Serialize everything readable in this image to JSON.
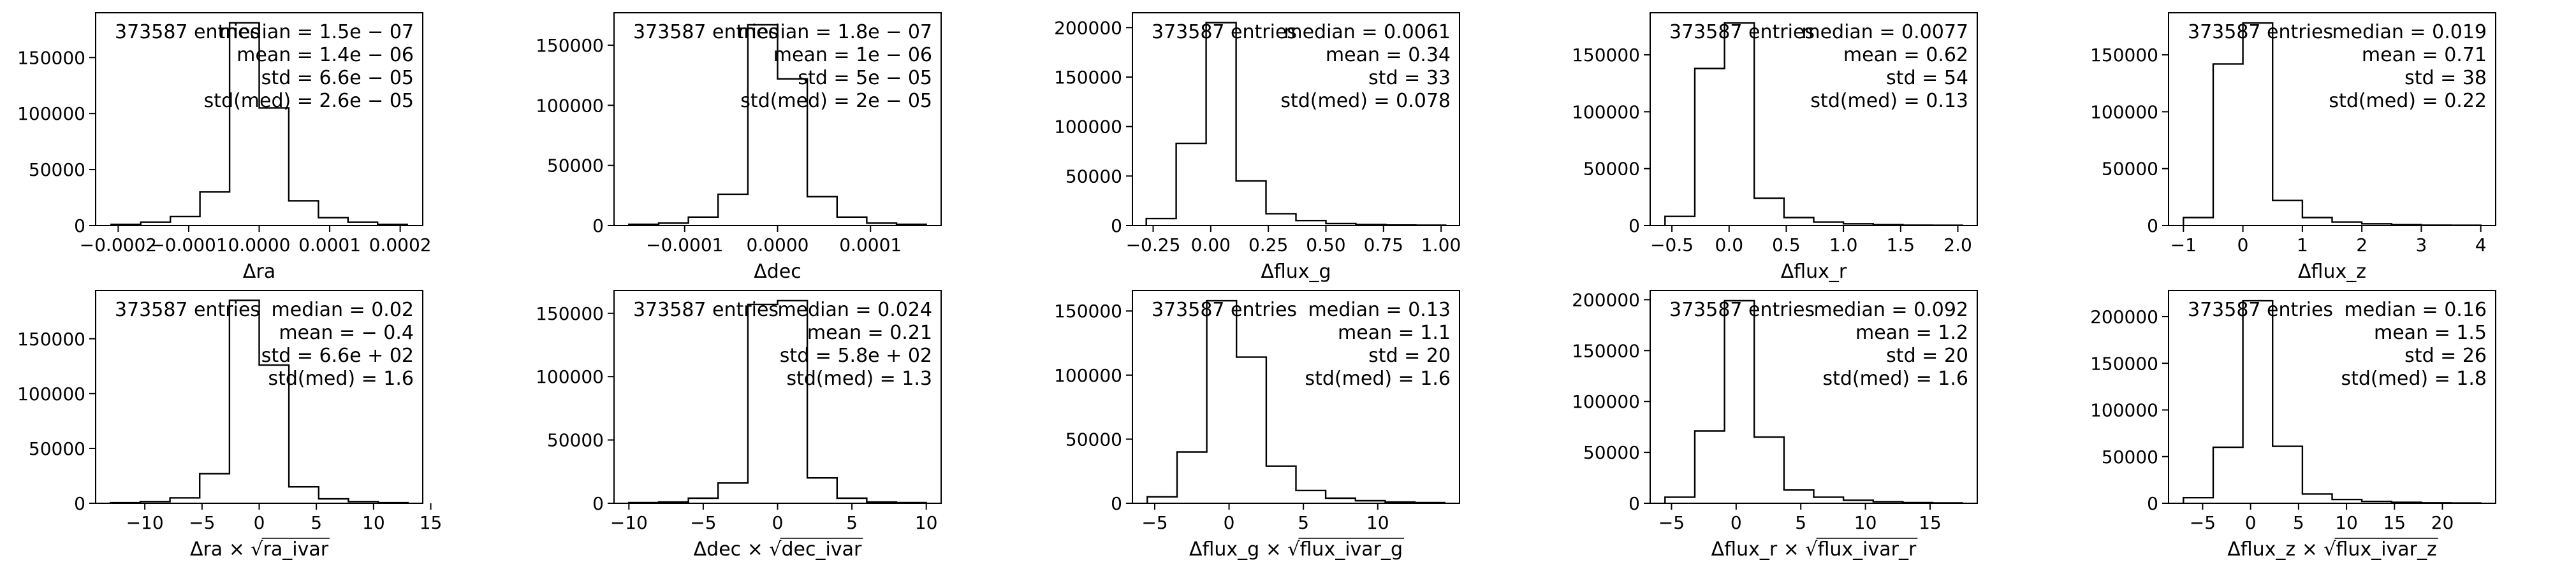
{
  "chart_data": [
    {
      "type": "histogram",
      "xlabel": "Δra",
      "entries_label": "373587 entries",
      "stats": [
        "median = 1.5e − 07",
        "mean = 1.4e − 06",
        "std = 6.6e − 05",
        "std(med) = 2.6e − 05"
      ],
      "bin_edges": [
        -0.00021,
        -0.000168,
        -0.000126,
        -8.4e-05,
        -4.2e-05,
        0.0,
        4.2e-05,
        8.4e-05,
        0.000126,
        0.000168,
        0.00021
      ],
      "counts": [
        1000,
        3000,
        8000,
        30000,
        181000,
        105000,
        22000,
        7000,
        3000,
        1000
      ],
      "xlim": [
        -0.000232,
        0.000232
      ],
      "ylim": [
        0,
        190000
      ],
      "xticks": [
        -0.0002,
        -0.0001,
        0.0,
        0.0001,
        0.0002
      ],
      "xtick_labels": [
        "−0.0002",
        "−0.0001",
        "0.0000",
        "0.0001",
        "0.0002"
      ],
      "yticks": [
        0,
        50000,
        100000,
        150000
      ],
      "ytick_labels": [
        "0",
        "50000",
        "100000",
        "150000"
      ]
    },
    {
      "type": "histogram",
      "xlabel": "Δdec",
      "entries_label": "373587 entries",
      "stats": [
        "median = 1.8e − 07",
        "mean = 1e − 06",
        "std = 5e − 05",
        "std(med) = 2e − 05"
      ],
      "bin_edges": [
        -0.00016,
        -0.000128,
        -9.6e-05,
        -6.4e-05,
        -3.2e-05,
        0.0,
        3.2e-05,
        6.4e-05,
        9.6e-05,
        0.000128,
        0.00016
      ],
      "counts": [
        1000,
        2000,
        7000,
        26000,
        167000,
        122000,
        24000,
        7000,
        2000,
        1000
      ],
      "xlim": [
        -0.000176,
        0.000176
      ],
      "ylim": [
        0,
        177000
      ],
      "xticks": [
        -0.0001,
        0.0,
        0.0001
      ],
      "xtick_labels": [
        "−0.0001",
        "0.0000",
        "0.0001"
      ],
      "yticks": [
        0,
        50000,
        100000,
        150000
      ],
      "ytick_labels": [
        "0",
        "50000",
        "100000",
        "150000"
      ]
    },
    {
      "type": "histogram",
      "xlabel": "Δflux_g",
      "entries_label": "373587 entries",
      "stats": [
        "median = 0.0061",
        "mean = 0.34",
        "std = 33",
        "std(med) = 0.078"
      ],
      "bin_edges": [
        -0.28,
        -0.15,
        -0.02,
        0.11,
        0.24,
        0.37,
        0.5,
        0.63,
        0.76,
        0.89,
        1.02
      ],
      "counts": [
        7000,
        83000,
        205000,
        45000,
        12000,
        5000,
        2000,
        1000,
        500,
        300
      ],
      "xlim": [
        -0.34,
        1.08
      ],
      "ylim": [
        0,
        215000
      ],
      "xticks": [
        -0.25,
        0.0,
        0.25,
        0.5,
        0.75,
        1.0
      ],
      "xtick_labels": [
        "−0.25",
        "0.00",
        "0.25",
        "0.50",
        "0.75",
        "1.00"
      ],
      "yticks": [
        0,
        50000,
        100000,
        150000,
        200000
      ],
      "ytick_labels": [
        "0",
        "50000",
        "100000",
        "150000",
        "200000"
      ]
    },
    {
      "type": "histogram",
      "xlabel": "Δflux_r",
      "entries_label": "373587 entries",
      "stats": [
        "median = 0.0077",
        "mean = 0.62",
        "std = 54",
        "std(med) = 0.13"
      ],
      "bin_edges": [
        -0.56,
        -0.3,
        -0.04,
        0.22,
        0.48,
        0.74,
        1.0,
        1.26,
        1.52,
        1.78,
        2.04
      ],
      "counts": [
        8000,
        138000,
        178000,
        24000,
        7000,
        3000,
        1500,
        700,
        300,
        200
      ],
      "xlim": [
        -0.69,
        2.17
      ],
      "ylim": [
        0,
        187000
      ],
      "xticks": [
        -0.5,
        0.0,
        0.5,
        1.0,
        1.5,
        2.0
      ],
      "xtick_labels": [
        "−0.5",
        "0.0",
        "0.5",
        "1.0",
        "1.5",
        "2.0"
      ],
      "yticks": [
        0,
        50000,
        100000,
        150000
      ],
      "ytick_labels": [
        "0",
        "50000",
        "100000",
        "150000"
      ]
    },
    {
      "type": "histogram",
      "xlabel": "Δflux_z",
      "entries_label": "373587 entries",
      "stats": [
        "median = 0.019",
        "mean = 0.71",
        "std = 38",
        "std(med) = 0.22"
      ],
      "bin_edges": [
        -1.0,
        -0.5,
        0.0,
        0.5,
        1.0,
        1.5,
        2.0,
        2.5,
        3.0,
        3.5,
        4.0
      ],
      "counts": [
        7000,
        142000,
        178000,
        22000,
        7000,
        3000,
        1500,
        700,
        300,
        200
      ],
      "xlim": [
        -1.25,
        4.25
      ],
      "ylim": [
        0,
        187000
      ],
      "xticks": [
        -1,
        0,
        1,
        2,
        3,
        4
      ],
      "xtick_labels": [
        "−1",
        "0",
        "1",
        "2",
        "3",
        "4"
      ],
      "yticks": [
        0,
        50000,
        100000,
        150000
      ],
      "ytick_labels": [
        "0",
        "50000",
        "100000",
        "150000"
      ]
    },
    {
      "type": "histogram",
      "xlabel_main": "Δra × ",
      "xlabel_sqrt": "ra_ivar",
      "entries_label": "373587 entries",
      "stats": [
        "median = 0.02",
        "mean = − 0.4",
        "std = 6.6e + 02",
        "std(med) = 1.6"
      ],
      "bin_edges": [
        -13.0,
        -10.4,
        -7.8,
        -5.2,
        -2.6,
        0.0,
        2.6,
        5.2,
        7.8,
        10.4,
        13.0
      ],
      "counts": [
        500,
        1500,
        5000,
        27000,
        185000,
        126000,
        15000,
        4000,
        1500,
        500
      ],
      "xlim": [
        -14.3,
        14.3
      ],
      "ylim": [
        0,
        194000
      ],
      "xticks": [
        -10,
        -5,
        0,
        5,
        10,
        15
      ],
      "xtick_labels": [
        "−10",
        "−5",
        "0",
        "5",
        "10",
        "15"
      ],
      "yticks": [
        0,
        50000,
        100000,
        150000
      ],
      "ytick_labels": [
        "0",
        "50000",
        "100000",
        "150000"
      ]
    },
    {
      "type": "histogram",
      "xlabel_main": "Δdec × ",
      "xlabel_sqrt": "dec_ivar",
      "entries_label": "373587 entries",
      "stats": [
        "median = 0.024",
        "mean = 0.21",
        "std = 5.8e + 02",
        "std(med) = 1.3"
      ],
      "bin_edges": [
        -10.0,
        -8.0,
        -6.0,
        -4.0,
        -2.0,
        0.0,
        2.0,
        4.0,
        6.0,
        8.0,
        10.0
      ],
      "counts": [
        500,
        1000,
        4000,
        16000,
        157000,
        160000,
        20000,
        4000,
        1000,
        500
      ],
      "xlim": [
        -11.0,
        11.0
      ],
      "ylim": [
        0,
        168000
      ],
      "xticks": [
        -10,
        -5,
        0,
        5,
        10
      ],
      "xtick_labels": [
        "−10",
        "−5",
        "0",
        "5",
        "10"
      ],
      "yticks": [
        0,
        50000,
        100000,
        150000
      ],
      "ytick_labels": [
        "0",
        "50000",
        "100000",
        "150000"
      ]
    },
    {
      "type": "histogram",
      "xlabel_main": "Δflux_g × ",
      "xlabel_sqrt": "flux_ivar_g",
      "entries_label": "373587 entries",
      "stats": [
        "median = 0.13",
        "mean = 1.1",
        "std = 20",
        "std(med) = 1.6"
      ],
      "bin_edges": [
        -5.5,
        -3.5,
        -1.5,
        0.5,
        2.5,
        4.5,
        6.5,
        8.5,
        10.5,
        12.5,
        14.5
      ],
      "counts": [
        5000,
        40000,
        158000,
        114000,
        29000,
        10000,
        4000,
        2000,
        1000,
        500
      ],
      "xlim": [
        -6.5,
        15.5
      ],
      "ylim": [
        0,
        166000
      ],
      "xticks": [
        -5,
        0,
        5,
        10
      ],
      "xtick_labels": [
        "−5",
        "0",
        "5",
        "10"
      ],
      "yticks": [
        0,
        50000,
        100000,
        150000
      ],
      "ytick_labels": [
        "0",
        "50000",
        "100000",
        "150000"
      ]
    },
    {
      "type": "histogram",
      "xlabel_main": "Δflux_r × ",
      "xlabel_sqrt": "flux_ivar_r",
      "entries_label": "373587 entries",
      "stats": [
        "median = 0.092",
        "mean = 1.2",
        "std = 20",
        "std(med) = 1.6"
      ],
      "bin_edges": [
        -5.5,
        -3.2,
        -0.9,
        1.4,
        3.7,
        6.0,
        8.3,
        10.6,
        12.9,
        15.2,
        17.5
      ],
      "counts": [
        6000,
        71000,
        199000,
        65000,
        13000,
        6000,
        3000,
        1500,
        700,
        300
      ],
      "xlim": [
        -6.65,
        18.65
      ],
      "ylim": [
        0,
        209000
      ],
      "xticks": [
        -5,
        0,
        5,
        10,
        15
      ],
      "xtick_labels": [
        "−5",
        "0",
        "5",
        "10",
        "15"
      ],
      "yticks": [
        0,
        50000,
        100000,
        150000,
        200000
      ],
      "ytick_labels": [
        "0",
        "50000",
        "100000",
        "150000",
        "200000"
      ]
    },
    {
      "type": "histogram",
      "xlabel_main": "Δflux_z × ",
      "xlabel_sqrt": "flux_ivar_z",
      "entries_label": "373587 entries",
      "stats": [
        "median = 0.16",
        "mean = 1.5",
        "std = 26",
        "std(med) = 1.8"
      ],
      "bin_edges": [
        -7.0,
        -3.9,
        -0.8,
        2.3,
        5.4,
        8.5,
        11.6,
        14.7,
        17.8,
        20.9,
        24.0
      ],
      "counts": [
        6000,
        60000,
        217000,
        61000,
        10000,
        4000,
        2000,
        1000,
        500,
        300
      ],
      "xlim": [
        -8.55,
        25.55
      ],
      "ylim": [
        0,
        228000
      ],
      "xticks": [
        -5,
        0,
        5,
        10,
        15,
        20
      ],
      "xtick_labels": [
        "−5",
        "0",
        "5",
        "10",
        "15",
        "20"
      ],
      "yticks": [
        0,
        50000,
        100000,
        150000,
        200000
      ],
      "ytick_labels": [
        "0",
        "50000",
        "100000",
        "150000",
        "200000"
      ]
    }
  ]
}
